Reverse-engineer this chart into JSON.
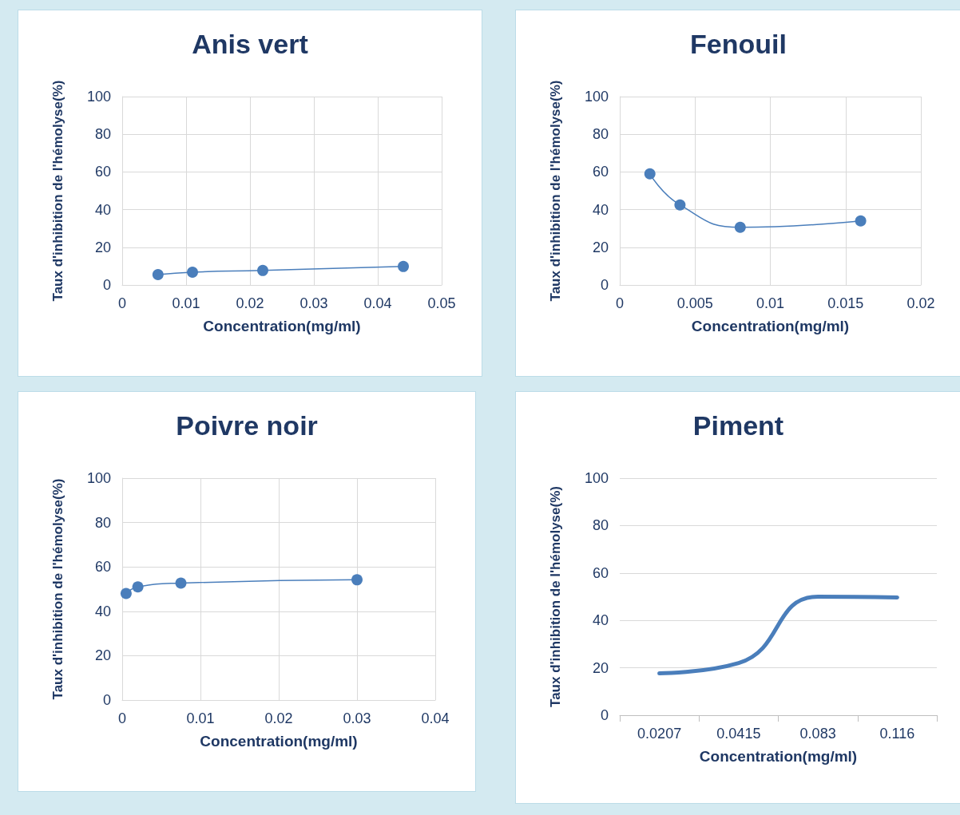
{
  "chart_data": [
    {
      "type": "line",
      "title": "Anis vert",
      "xlabel": "Concentration(mg/ml)",
      "ylabel": "Taux d'inhibition de l'hémolyse(%)",
      "x": [
        0.0056,
        0.011,
        0.022,
        0.044
      ],
      "series": [
        {
          "color": "#4a7ebb",
          "values": [
            5.5,
            6.8,
            7.7,
            9.8
          ]
        }
      ],
      "xlim": [
        0,
        0.05
      ],
      "xticks": [
        0,
        0.01,
        0.02,
        0.03,
        0.04,
        0.05
      ],
      "ylim": [
        0,
        100
      ],
      "yticks": [
        0,
        20,
        40,
        60,
        80,
        100
      ],
      "grid": true,
      "marker": "circle"
    },
    {
      "type": "line",
      "title": "Fenouil",
      "xlabel": "Concentration(mg/ml)",
      "ylabel": "Taux d'inhibition de l'hémolyse(%)",
      "x": [
        0.002,
        0.004,
        0.008,
        0.016
      ],
      "series": [
        {
          "color": "#4a7ebb",
          "values": [
            59,
            42.5,
            30.6,
            34
          ]
        }
      ],
      "xlim": [
        0,
        0.02
      ],
      "xticks": [
        0,
        0.005,
        0.01,
        0.015,
        0.02
      ],
      "ylim": [
        0,
        100
      ],
      "yticks": [
        0,
        20,
        40,
        60,
        80,
        100
      ],
      "grid": true,
      "marker": "circle"
    },
    {
      "type": "line",
      "title": "Poivre noir",
      "xlabel": "Concentration(mg/ml)",
      "ylabel": "Taux d'inhibition de l'hémolyse(%)",
      "x": [
        0.0005,
        0.002,
        0.0075,
        0.03
      ],
      "series": [
        {
          "color": "#4a7ebb",
          "values": [
            48,
            51,
            52.7,
            54.2
          ]
        }
      ],
      "xlim": [
        0,
        0.04
      ],
      "xticks": [
        0,
        0.01,
        0.02,
        0.03,
        0.04
      ],
      "ylim": [
        0,
        100
      ],
      "yticks": [
        0,
        20,
        40,
        60,
        80,
        100
      ],
      "grid": true,
      "marker": "circle"
    },
    {
      "type": "line",
      "title": "Piment",
      "xlabel": "Concentration(mg/ml)",
      "ylabel": "Taux d'inhibition de l'hémolyse(%)",
      "categories": [
        "0.0207",
        "0.0415",
        "0.083",
        "0.116"
      ],
      "series": [
        {
          "color": "#4a7ebb",
          "values": [
            17.7,
            22,
            50,
            49.7
          ]
        }
      ],
      "ylim": [
        0,
        100
      ],
      "yticks": [
        0,
        20,
        40,
        60,
        80,
        100
      ],
      "grid": "y",
      "marker": "none"
    }
  ]
}
